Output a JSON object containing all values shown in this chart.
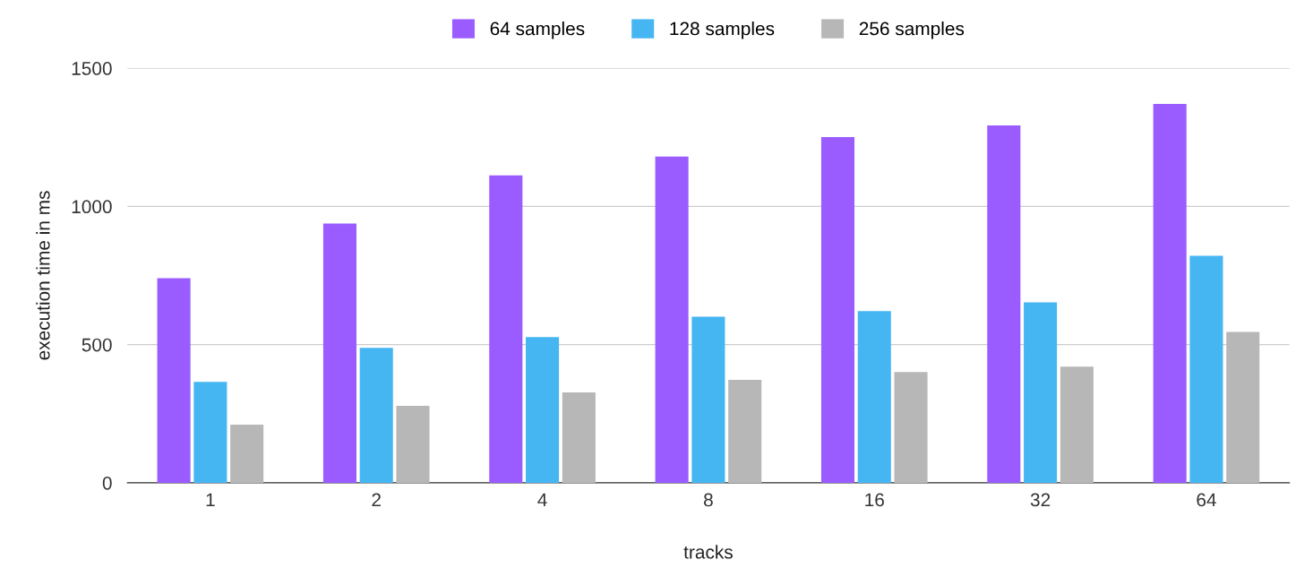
{
  "chart_data": {
    "type": "bar",
    "xlabel": "tracks",
    "ylabel": "execution time in ms",
    "categories": [
      "1",
      "2",
      "4",
      "8",
      "16",
      "32",
      "64"
    ],
    "series": [
      {
        "name": "64 samples",
        "color": "#9a5cff",
        "values": [
          740,
          938,
          1112,
          1180,
          1251,
          1293,
          1371
        ]
      },
      {
        "name": "128 samples",
        "color": "#46b6f3",
        "values": [
          365,
          488,
          527,
          601,
          621,
          653,
          821
        ]
      },
      {
        "name": "256 samples",
        "color": "#b7b7b7",
        "values": [
          210,
          278,
          327,
          372,
          401,
          420,
          546
        ]
      }
    ],
    "ylim": [
      0,
      1500
    ],
    "yticks": [
      0,
      500,
      1000,
      1500
    ],
    "grid": "y",
    "legend": "top"
  }
}
